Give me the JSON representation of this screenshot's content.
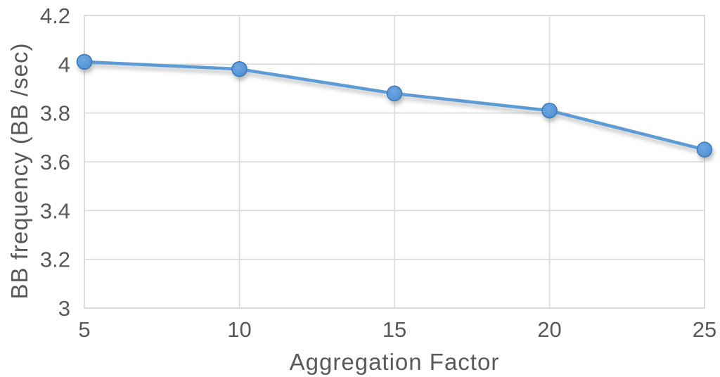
{
  "chart_data": {
    "type": "line",
    "x": [
      5,
      10,
      15,
      20,
      25
    ],
    "values": [
      4.01,
      3.98,
      3.88,
      3.81,
      3.65
    ],
    "xlabel": "Aggregation Factor",
    "ylabel": "BB frequency (BB /sec)",
    "xlim": [
      5,
      25
    ],
    "ylim": [
      3,
      4.2
    ],
    "xtick_labels": [
      "5",
      "10",
      "15",
      "20",
      "25"
    ],
    "yticks": [
      3,
      3.2,
      3.4,
      3.6,
      3.8,
      4,
      4.2
    ],
    "ytick_labels": [
      "3",
      "3.2",
      "3.4",
      "3.6",
      "3.8",
      "4",
      "4.2"
    ],
    "grid": true,
    "legend": false,
    "colors": {
      "line": "#5B9BD5",
      "marker_fill": "#4C8FD4",
      "marker_stroke": "#3C7AB8",
      "grid": "#D9D9D9",
      "axis_text": "#595959",
      "background": "#FFFFFF"
    }
  }
}
